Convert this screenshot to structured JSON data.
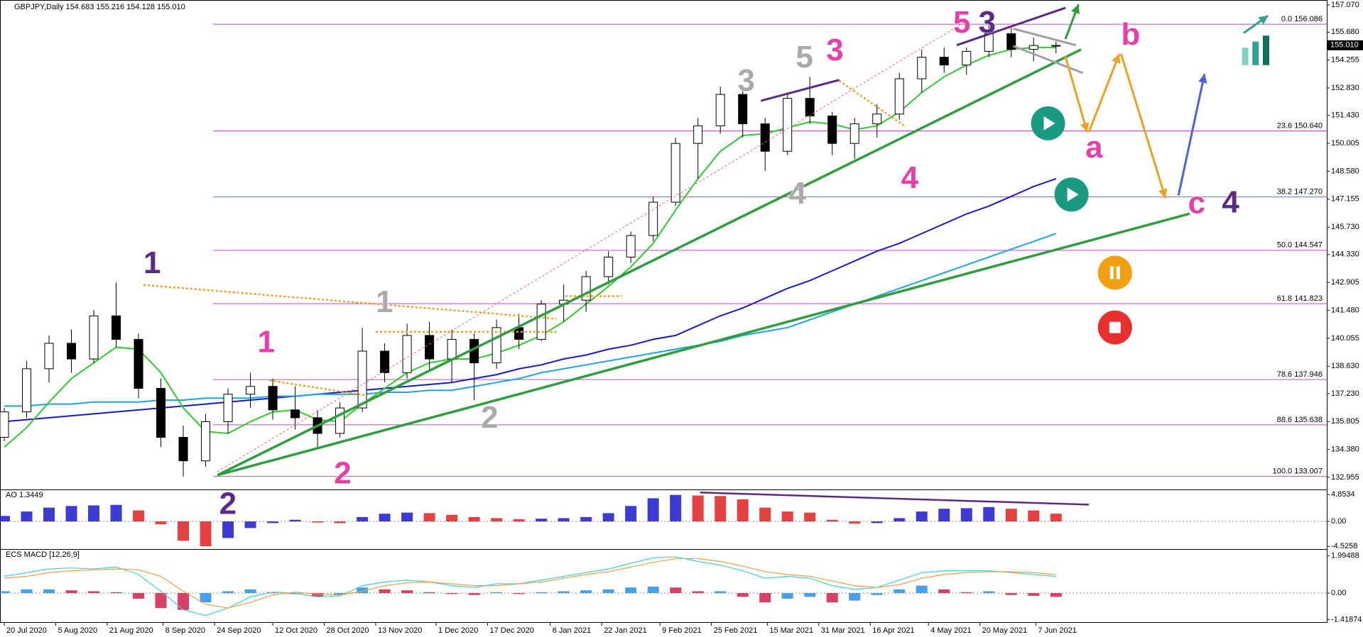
{
  "chart_data": [
    {
      "type": "candlestick",
      "header": "GBPJPY,Daily  154.683 155.216 154.128 155.010",
      "xlim": [
        -0.19,
        59.1
      ],
      "xticks": [
        {
          "value": 0,
          "label": "20 Jul 2020"
        },
        {
          "value": 2.3,
          "label": "5 Aug 2020"
        },
        {
          "value": 4.6,
          "label": "21 Aug 2020"
        },
        {
          "value": 7.1,
          "label": "8 Sep 2020"
        },
        {
          "value": 9.4,
          "label": "24 Sep 2020"
        },
        {
          "value": 12,
          "label": "12 Oct 2020"
        },
        {
          "value": 14.3,
          "label": "28 Oct 2020"
        },
        {
          "value": 16.6,
          "label": "13 Nov 2020"
        },
        {
          "value": 19.3,
          "label": "1 Dec 2020"
        },
        {
          "value": 21.6,
          "label": "17 Dec 2020"
        },
        {
          "value": 24.4,
          "label": "6 Jan 2021"
        },
        {
          "value": 26.7,
          "label": "22 Jan 2021"
        },
        {
          "value": 29.3,
          "label": "9 Feb 2021"
        },
        {
          "value": 31.6,
          "label": "25 Feb 2021"
        },
        {
          "value": 34.1,
          "label": "15 Mar 2021"
        },
        {
          "value": 36.4,
          "label": "31 Mar 2021"
        },
        {
          "value": 38.7,
          "label": "16 Apr 2021"
        },
        {
          "value": 41.3,
          "label": "4 May 2021"
        },
        {
          "value": 43.6,
          "label": "20 May 2021"
        },
        {
          "value": 46.1,
          "label": "7 Jun 2021"
        }
      ],
      "ylim": [
        132.34,
        157.32
      ],
      "yticks": [
        {
          "value": 157.07,
          "label": "157.070"
        },
        {
          "value": 155.68,
          "label": "155.680"
        },
        154.255,
        {
          "value": 152.83,
          "label": "152.830"
        },
        {
          "value": 151.43,
          "label": "151.430"
        },
        150.005,
        {
          "value": 148.58,
          "label": "148.580"
        },
        147.155,
        {
          "value": 145.73,
          "label": "145.730"
        },
        {
          "value": 144.33,
          "label": "144.330"
        },
        142.905,
        {
          "value": 141.48,
          "label": "141.480"
        },
        140.055,
        {
          "value": 138.63,
          "label": "138.630"
        },
        {
          "value": 137.23,
          "label": "137.230"
        },
        135.805,
        {
          "value": 134.38,
          "label": "134.380"
        },
        132.955
      ],
      "last_price": {
        "value": 155.01,
        "label": "155.010"
      },
      "up_color": "#ffffff",
      "down_color": "#000000",
      "open": [
        135.0,
        136.3,
        138.5,
        139.8,
        139.0,
        141.2,
        140.0,
        137.5,
        135.0,
        133.8,
        135.8,
        137.2,
        137.6,
        136.4,
        136.0,
        135.2,
        136.5,
        139.4,
        138.3,
        140.2,
        139.0,
        140.0,
        138.8,
        140.6,
        140.0,
        141.8,
        142.0,
        143.2,
        144.2,
        145.3,
        147.0,
        150.0,
        150.9,
        152.5,
        151.0,
        149.6,
        152.3,
        151.4,
        150.0,
        151.0,
        151.5,
        153.3,
        154.4,
        154.0,
        154.7,
        155.6,
        154.8,
        155.0
      ],
      "high": [
        136.5,
        138.9,
        140.2,
        140.5,
        141.5,
        142.9,
        140.3,
        138.0,
        135.6,
        136.2,
        137.5,
        138.3,
        138.0,
        137.6,
        136.4,
        136.8,
        140.6,
        139.8,
        140.8,
        140.9,
        140.5,
        140.3,
        141.0,
        141.3,
        142.0,
        142.8,
        143.5,
        144.5,
        145.5,
        147.3,
        150.3,
        151.3,
        152.9,
        152.9,
        151.3,
        152.6,
        153.4,
        151.6,
        151.3,
        152.0,
        153.6,
        154.8,
        154.9,
        154.9,
        156.1,
        155.9,
        155.4,
        155.2
      ],
      "low": [
        134.8,
        136.0,
        137.8,
        138.3,
        138.8,
        139.6,
        137.0,
        134.5,
        133.0,
        133.5,
        135.2,
        136.5,
        135.9,
        135.4,
        134.4,
        135.0,
        136.3,
        137.8,
        138.0,
        138.4,
        137.8,
        136.9,
        138.5,
        139.5,
        139.9,
        140.9,
        141.4,
        142.8,
        143.9,
        145.0,
        146.8,
        148.2,
        150.5,
        150.3,
        148.6,
        149.4,
        151.0,
        149.4,
        149.2,
        150.3,
        151.2,
        152.6,
        153.6,
        153.5,
        154.4,
        154.4,
        154.2,
        154.6
      ],
      "close": [
        136.3,
        138.5,
        139.8,
        139.0,
        141.2,
        140.0,
        137.5,
        135.0,
        133.8,
        135.8,
        137.2,
        137.6,
        136.4,
        136.0,
        135.2,
        136.5,
        139.4,
        138.3,
        140.2,
        139.0,
        140.0,
        138.8,
        140.6,
        140.0,
        141.8,
        142.0,
        143.2,
        144.2,
        145.3,
        147.0,
        150.0,
        150.9,
        152.5,
        151.0,
        149.6,
        152.3,
        151.4,
        150.0,
        151.0,
        151.5,
        153.3,
        154.4,
        154.0,
        154.7,
        155.6,
        154.8,
        155.0,
        155.0
      ],
      "lines": [
        {
          "color": "#1a1acc",
          "values": [
            135.8,
            135.9,
            136.0,
            136.1,
            136.2,
            136.3,
            136.4,
            136.5,
            136.6,
            136.7,
            136.8,
            136.9,
            137.0,
            137.1,
            137.2,
            137.3,
            137.4,
            137.5,
            137.6,
            137.7,
            137.8,
            138.0,
            138.2,
            138.5,
            138.7,
            139.0,
            139.2,
            139.5,
            139.7,
            140.0,
            140.2,
            140.7,
            141.2,
            141.6,
            142.1,
            142.6,
            143.0,
            143.5,
            144.0,
            144.5,
            144.9,
            145.4,
            145.9,
            146.4,
            146.8,
            147.3,
            147.8,
            148.2
          ]
        },
        {
          "color": "#1ea4e8",
          "values": [
            136.6,
            136.6,
            136.7,
            136.7,
            136.8,
            136.8,
            136.8,
            136.9,
            136.9,
            137.0,
            137.0,
            137.0,
            137.1,
            137.1,
            137.2,
            137.2,
            137.2,
            137.3,
            137.3,
            137.4,
            137.4,
            137.6,
            137.8,
            138.0,
            138.3,
            138.5,
            138.7,
            138.9,
            139.1,
            139.3,
            139.5,
            139.7,
            139.9,
            140.2,
            140.4,
            140.6,
            141.0,
            141.4,
            141.8,
            142.2,
            142.6,
            143.0,
            143.4,
            143.8,
            144.2,
            144.6,
            145.0,
            145.4
          ]
        },
        {
          "color": "#2ecc2e",
          "values": [
            134.5,
            135.5,
            136.8,
            138.0,
            138.8,
            139.6,
            139.5,
            138.3,
            136.5,
            135.3,
            135.2,
            135.8,
            136.3,
            136.4,
            135.9,
            135.8,
            136.7,
            137.5,
            138.3,
            138.8,
            139.0,
            139.0,
            139.3,
            139.7,
            140.2,
            140.9,
            141.8,
            142.7,
            143.7,
            144.9,
            146.6,
            148.2,
            149.6,
            150.4,
            150.5,
            150.8,
            151.1,
            151.0,
            150.7,
            150.9,
            151.6,
            152.6,
            153.4,
            154.0,
            154.5,
            154.8,
            154.9,
            154.9
          ]
        }
      ],
      "fib_levels": [
        {
          "value": 156.086,
          "label": "0.0 156.086"
        },
        {
          "value": 150.64,
          "label": "23.6 150.640"
        },
        {
          "value": 147.27,
          "label": "38.2 147.270"
        },
        {
          "value": 144.547,
          "label": "50.0 144.547"
        },
        {
          "value": 141.823,
          "label": "61.8 141.823"
        },
        {
          "value": 137.946,
          "label": "78.6 137.946"
        },
        {
          "value": 135.638,
          "label": "88.6 135.638"
        },
        {
          "value": 133.007,
          "label": "100.0 133.007"
        }
      ],
      "fib_color": "#cc44cc",
      "annotations": [
        {
          "text": "1",
          "color": "#5b2a86"
        },
        {
          "text": "2",
          "color": "#5b2a86"
        },
        {
          "text": "3",
          "color": "#5b2a86"
        },
        {
          "text": "4",
          "color": "#5b2a86"
        },
        {
          "text": "3",
          "color": "#aaaaaa"
        },
        {
          "text": "5",
          "color": "#aaaaaa"
        },
        {
          "text": "4",
          "color": "#aaaaaa"
        },
        {
          "text": "1",
          "color": "#aaaaaa"
        },
        {
          "text": "2",
          "color": "#aaaaaa"
        },
        {
          "text": "1",
          "color": "#e83ea8"
        },
        {
          "text": "2",
          "color": "#e83ea8"
        },
        {
          "text": "3",
          "color": "#e83ea8"
        },
        {
          "text": "4",
          "color": "#e83ea8"
        },
        {
          "text": "5",
          "color": "#e83ea8"
        },
        {
          "text": "a",
          "color": "#e83ea8"
        },
        {
          "text": "b",
          "color": "#e83ea8"
        },
        {
          "text": "c",
          "color": "#e83ea8"
        }
      ]
    },
    {
      "type": "bar",
      "title": "AO 1.3449",
      "ylim": [
        -5.0,
        5.79
      ],
      "yticks": [
        4.8534,
        {
          "value": 0,
          "label": "0.00"
        },
        -4.5258
      ],
      "up_color": "#1a1acc",
      "down_color": "#e02020",
      "values": [
        1.0,
        1.8,
        2.5,
        2.8,
        2.9,
        3.0,
        2.0,
        -0.5,
        -3.5,
        -4.5,
        -3.0,
        -1.2,
        -0.3,
        0.3,
        -0.2,
        -0.3,
        0.8,
        1.4,
        1.6,
        1.5,
        1.2,
        0.8,
        0.6,
        0.4,
        0.5,
        0.6,
        0.8,
        1.5,
        2.8,
        4.2,
        4.8,
        4.7,
        4.6,
        4.0,
        2.5,
        1.8,
        1.6,
        0.3,
        -0.4,
        -0.3,
        0.6,
        1.8,
        2.3,
        2.4,
        2.6,
        2.3,
        2.0,
        1.4
      ]
    },
    {
      "type": "macd",
      "title": "ECS MACD [12,26,9]",
      "ylim": [
        -1.558,
        2.366
      ],
      "yticks": [
        1.99488,
        {
          "value": 0,
          "label": "0.00"
        },
        -1.41874
      ],
      "up_color": "#2a8ee8",
      "down_color": "#d0204a",
      "values": [
        0.1,
        0.2,
        0.2,
        0.15,
        0.1,
        0.05,
        -0.3,
        -0.8,
        -0.9,
        -0.5,
        0.1,
        0.2,
        0.05,
        -0.05,
        -0.2,
        -0.1,
        0.3,
        0.2,
        0.15,
        0.05,
        -0.05,
        -0.1,
        0.05,
        -0.05,
        0.05,
        0.1,
        0.15,
        0.2,
        0.3,
        0.35,
        0.3,
        0.1,
        0.1,
        -0.2,
        -0.5,
        -0.3,
        -0.2,
        -0.5,
        -0.4,
        -0.1,
        0.2,
        0.4,
        0.2,
        0.05,
        0.1,
        -0.1,
        -0.15,
        -0.2
      ],
      "lines": [
        {
          "color": "#40d0e0",
          "values": [
            0.9,
            1.1,
            1.3,
            1.35,
            1.3,
            1.4,
            1.0,
            0.1,
            -0.9,
            -1.2,
            -0.8,
            -0.2,
            0.05,
            0.0,
            -0.2,
            -0.15,
            0.4,
            0.6,
            0.7,
            0.6,
            0.4,
            0.3,
            0.5,
            0.5,
            0.7,
            0.9,
            1.1,
            1.3,
            1.6,
            1.9,
            1.95,
            1.7,
            1.5,
            1.2,
            0.8,
            0.9,
            0.8,
            0.4,
            0.2,
            0.3,
            0.7,
            1.1,
            1.2,
            1.2,
            1.2,
            1.1,
            1.0,
            0.9
          ]
        },
        {
          "color": "#f0a040",
          "values": [
            0.8,
            0.9,
            1.1,
            1.2,
            1.25,
            1.3,
            1.25,
            0.9,
            0.1,
            -0.6,
            -0.8,
            -0.5,
            -0.1,
            0.05,
            -0.05,
            -0.1,
            0.1,
            0.4,
            0.55,
            0.6,
            0.5,
            0.4,
            0.4,
            0.5,
            0.6,
            0.8,
            1.0,
            1.15,
            1.4,
            1.65,
            1.85,
            1.85,
            1.7,
            1.45,
            1.15,
            1.0,
            0.9,
            0.65,
            0.4,
            0.3,
            0.45,
            0.8,
            1.0,
            1.1,
            1.15,
            1.15,
            1.1,
            1.0
          ]
        }
      ]
    }
  ]
}
